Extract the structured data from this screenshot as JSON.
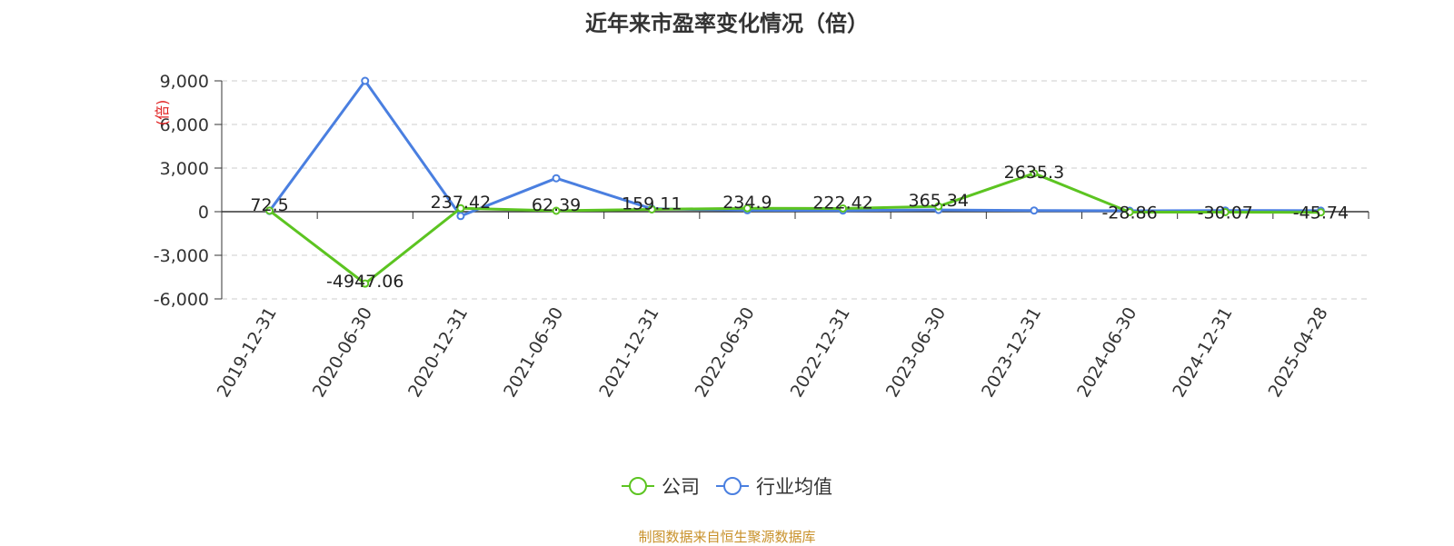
{
  "chart_data": {
    "type": "line",
    "title": "近年来市盈率变化情况（倍）",
    "ylabel": "(倍)",
    "categories": [
      "2019-12-31",
      "2020-06-30",
      "2020-12-31",
      "2021-06-30",
      "2021-12-31",
      "2022-06-30",
      "2022-12-31",
      "2023-06-30",
      "2023-12-31",
      "2024-06-30",
      "2024-12-31",
      "2025-04-28"
    ],
    "series": [
      {
        "name": "公司",
        "color": "#5cc421",
        "values": [
          72.5,
          -4947.06,
          237.42,
          62.39,
          159.11,
          234.9,
          222.42,
          365.34,
          2635.3,
          -28.86,
          -30.07,
          -45.74
        ],
        "labels": [
          "72.5",
          "-4947.06",
          "237.42",
          "62.39",
          "159.11",
          "234.9",
          "222.42",
          "365.34",
          "2635.3",
          "-28.86",
          "-30.07",
          "-45.74"
        ]
      },
      {
        "name": "行业均值",
        "color": "#4a7fe0",
        "values": [
          50,
          9000,
          -300,
          2300,
          200,
          100,
          80,
          120,
          80,
          60,
          80,
          70
        ]
      }
    ],
    "yticks": [
      "9,000",
      "6,000",
      "3,000",
      "0",
      "-3,000",
      "-6,000"
    ],
    "ytick_values": [
      9000,
      6000,
      3000,
      0,
      -3000,
      -6000
    ],
    "ylim": [
      -6000,
      9000
    ],
    "grid": true,
    "legend_position": "bottom"
  },
  "source": "制图数据来自恒生聚源数据库"
}
